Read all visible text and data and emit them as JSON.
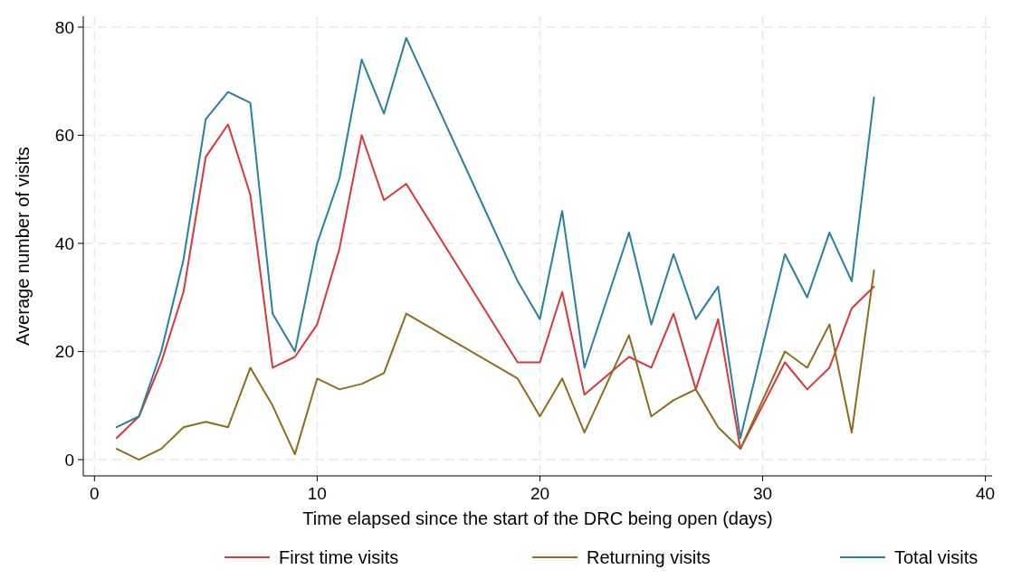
{
  "chart_data": {
    "type": "line",
    "xlabel": "Time elapsed since the start of the DRC being open (days)",
    "ylabel": "Average number of visits",
    "x": [
      1,
      2,
      3,
      4,
      5,
      6,
      7,
      8,
      9,
      10,
      11,
      12,
      13,
      14,
      19,
      20,
      21,
      22,
      24,
      25,
      26,
      27,
      28,
      29,
      31,
      32,
      33,
      34,
      35
    ],
    "series": [
      {
        "name": "First time visits",
        "color": "#d9363e",
        "values": [
          4,
          8,
          18,
          31,
          56,
          62,
          49,
          17,
          19,
          25,
          39,
          60,
          48,
          51,
          18,
          18,
          31,
          12,
          19,
          17,
          27,
          13,
          26,
          2,
          18,
          13,
          17,
          28,
          32
        ]
      },
      {
        "name": "Returning visits",
        "color": "#8c6d1f",
        "values": [
          2,
          0,
          2,
          6,
          7,
          6,
          17,
          10,
          1,
          15,
          13,
          14,
          16,
          27,
          15,
          8,
          15,
          5,
          23,
          8,
          11,
          13,
          6,
          2,
          20,
          17,
          25,
          5,
          35
        ]
      },
      {
        "name": "Total visits",
        "color": "#2a7f9e",
        "values": [
          6,
          8,
          20,
          37,
          63,
          68,
          66,
          27,
          20,
          40,
          52,
          74,
          64,
          78,
          33,
          26,
          46,
          17,
          42,
          25,
          38,
          26,
          32,
          4,
          38,
          30,
          42,
          33,
          67
        ]
      }
    ],
    "xlim": [
      -0.5,
      40.3
    ],
    "ylim": [
      -3,
      82
    ],
    "xticks": [
      0,
      10,
      20,
      30,
      40
    ],
    "yticks": [
      0,
      20,
      40,
      60,
      80
    ],
    "grid": true,
    "legend": "bottom",
    "marker": "none",
    "line_style": "solid"
  }
}
